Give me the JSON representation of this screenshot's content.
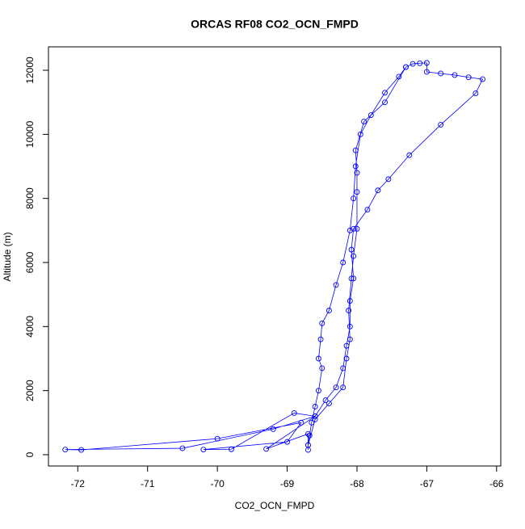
{
  "chart_data": {
    "type": "line",
    "title": "ORCAS RF08 CO2_OCN_FMPD",
    "x_label": "CO2_OCN_FMPD",
    "y_label": "Altitude (m)",
    "color": "#0000ff",
    "markers": true,
    "x": [
      -68.7,
      -68.7,
      -68.68,
      -68.65,
      -68.6,
      -68.55,
      -68.5,
      -68.55,
      -68.52,
      -68.5,
      -68.4,
      -68.3,
      -68.2,
      -68.1,
      -68.05,
      -68.02,
      -67.95,
      -67.8,
      -67.6,
      -67.4,
      -67.3,
      -67.2,
      -67.1,
      -67.0,
      -67.0,
      -66.8,
      -66.6,
      -66.4,
      -66.2,
      -66.3,
      -66.8,
      -67.25,
      -67.55,
      -67.7,
      -67.85,
      -68.05,
      -68.08,
      -68.05,
      -68.1,
      -68.1,
      -68.15,
      -68.2,
      -68.3,
      -68.45,
      -68.6,
      -69.2,
      -70.5,
      -72.18,
      -71.95,
      -70.0,
      -68.8,
      -69.0,
      -70.2,
      -69.8,
      -68.9,
      -68.6,
      -69.3,
      -68.7,
      -68.7,
      -68.6,
      -68.4,
      -68.2,
      -68.15,
      -68.1,
      -68.12,
      -68.08,
      -68.05,
      -68.0,
      -68.0,
      -68.0,
      -68.02,
      -67.9,
      -67.6,
      -67.3
    ],
    "values": [
      150,
      300,
      600,
      1000,
      1500,
      2000,
      2700,
      3000,
      3600,
      4100,
      4500,
      5300,
      6000,
      7000,
      8000,
      9000,
      10000,
      10600,
      11300,
      11800,
      12100,
      12200,
      12220,
      12230,
      11950,
      11900,
      11850,
      11780,
      11720,
      11280,
      10300,
      9350,
      8600,
      8250,
      7650,
      7050,
      6400,
      5500,
      4800,
      4000,
      3400,
      2700,
      2100,
      1700,
      1200,
      800,
      200,
      160,
      150,
      500,
      1000,
      400,
      160,
      170,
      1300,
      1200,
      180,
      650,
      300,
      1100,
      1600,
      2100,
      3000,
      3600,
      4500,
      5500,
      6200,
      7050,
      8200,
      8800,
      9500,
      10400,
      11000,
      12100
    ],
    "xlim": [
      -72.42,
      -65.94
    ],
    "xticks": [
      -72,
      -71,
      -70,
      -69,
      -68,
      -67,
      -66
    ],
    "ylim": [
      -353,
      12731
    ],
    "yticks": [
      0,
      2000,
      4000,
      6000,
      8000,
      10000,
      12000
    ],
    "grid": false
  }
}
